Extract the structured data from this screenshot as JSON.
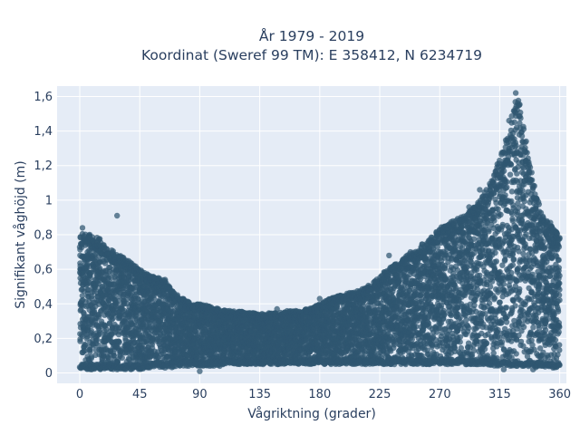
{
  "chart_data": {
    "type": "scatter",
    "title": "År 1979 - 2019",
    "subtitle": "Koordinat (Sweref 99 TM): E 358412, N 6234719",
    "xlabel": "Vågriktning (grader)",
    "ylabel": "Signifikant våghöjd (m)",
    "xlim": [
      -17,
      365
    ],
    "ylim": [
      -0.06,
      1.66
    ],
    "xticks": [
      0,
      45,
      90,
      135,
      180,
      225,
      270,
      315,
      360
    ],
    "xtick_labels": [
      "0",
      "45",
      "90",
      "135",
      "180",
      "225",
      "270",
      "315",
      "360"
    ],
    "yticks": [
      0,
      0.2,
      0.4,
      0.6,
      0.8,
      1.0,
      1.2,
      1.4,
      1.6
    ],
    "ytick_labels": [
      "0",
      "0,2",
      "0,4",
      "0,6",
      "0,8",
      "1",
      "1,2",
      "1,4",
      "1,6"
    ],
    "grid": true,
    "point_color": "#2f5670",
    "series": [
      {
        "x": [
          0,
          5,
          10,
          15,
          20,
          25,
          30,
          35,
          40,
          45,
          50,
          55,
          60,
          65,
          70,
          75,
          80,
          85,
          90,
          95,
          100,
          105,
          110,
          115,
          120,
          125,
          130,
          135,
          140,
          145,
          150,
          155,
          160,
          165,
          170,
          175,
          180,
          185,
          190,
          195,
          200,
          205,
          210,
          215,
          220,
          225,
          230,
          235,
          240,
          245,
          250,
          255,
          260,
          265,
          270,
          275,
          280,
          285,
          290,
          295,
          300,
          305,
          310,
          315,
          320,
          325,
          328,
          330,
          335,
          340,
          345,
          350,
          355,
          360
        ],
        "y_max": [
          0.8,
          0.82,
          0.79,
          0.78,
          0.72,
          0.71,
          0.68,
          0.66,
          0.63,
          0.6,
          0.58,
          0.56,
          0.55,
          0.53,
          0.48,
          0.44,
          0.42,
          0.4,
          0.4,
          0.39,
          0.38,
          0.37,
          0.36,
          0.36,
          0.36,
          0.35,
          0.35,
          0.34,
          0.35,
          0.35,
          0.35,
          0.36,
          0.36,
          0.36,
          0.37,
          0.38,
          0.4,
          0.42,
          0.44,
          0.45,
          0.46,
          0.47,
          0.48,
          0.5,
          0.52,
          0.56,
          0.6,
          0.62,
          0.65,
          0.68,
          0.7,
          0.74,
          0.76,
          0.8,
          0.84,
          0.86,
          0.88,
          0.9,
          0.92,
          0.96,
          1.0,
          1.06,
          1.14,
          1.24,
          1.36,
          1.52,
          1.62,
          1.56,
          1.32,
          1.12,
          0.96,
          0.88,
          0.84,
          0.8
        ],
        "y_min": [
          0.02,
          0.02,
          0.02,
          0.02,
          0.02,
          0.02,
          0.02,
          0.02,
          0.02,
          0.02,
          0.03,
          0.03,
          0.03,
          0.03,
          0.03,
          0.04,
          0.04,
          0.04,
          0.04,
          0.04,
          0.04,
          0.04,
          0.05,
          0.05,
          0.05,
          0.05,
          0.05,
          0.05,
          0.05,
          0.05,
          0.05,
          0.05,
          0.05,
          0.05,
          0.05,
          0.05,
          0.05,
          0.05,
          0.05,
          0.05,
          0.05,
          0.05,
          0.05,
          0.05,
          0.05,
          0.05,
          0.05,
          0.05,
          0.05,
          0.05,
          0.05,
          0.05,
          0.05,
          0.05,
          0.05,
          0.05,
          0.05,
          0.05,
          0.05,
          0.05,
          0.05,
          0.05,
          0.04,
          0.04,
          0.04,
          0.04,
          0.04,
          0.04,
          0.04,
          0.03,
          0.03,
          0.03,
          0.03,
          0.03
        ]
      }
    ],
    "outliers": [
      {
        "x": 28,
        "y": 0.91
      },
      {
        "x": 2,
        "y": 0.84
      },
      {
        "x": 232,
        "y": 0.68
      },
      {
        "x": 248,
        "y": 0.7
      },
      {
        "x": 262,
        "y": 0.76
      },
      {
        "x": 268,
        "y": 0.79
      },
      {
        "x": 292,
        "y": 0.96
      },
      {
        "x": 300,
        "y": 1.06
      },
      {
        "x": 322,
        "y": 1.46
      },
      {
        "x": 327,
        "y": 1.62
      },
      {
        "x": 342,
        "y": 0.95
      },
      {
        "x": 353,
        "y": 0.87
      },
      {
        "x": 148,
        "y": 0.37
      },
      {
        "x": 180,
        "y": 0.43
      },
      {
        "x": 205,
        "y": 0.46
      },
      {
        "x": 318,
        "y": 0.02
      },
      {
        "x": 340,
        "y": 0.02
      },
      {
        "x": 90,
        "y": 0.01
      },
      {
        "x": 64,
        "y": 0.54
      }
    ]
  }
}
